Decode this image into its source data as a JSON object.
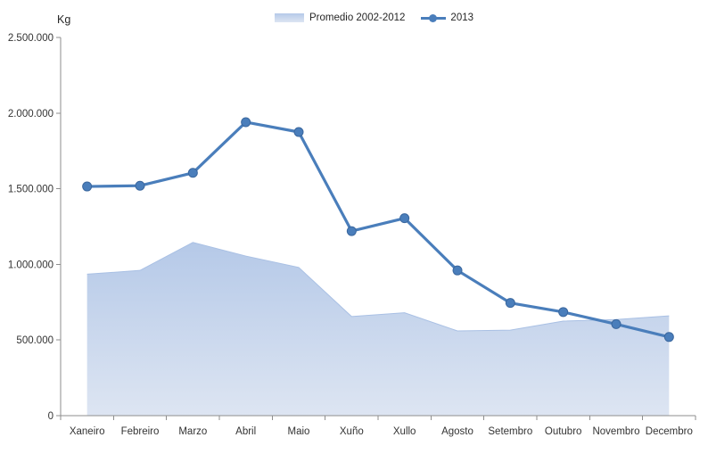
{
  "chart_data": {
    "type": "area+line",
    "title": "",
    "unit_label": "Kg",
    "categories": [
      "Xaneiro",
      "Febreiro",
      "Marzo",
      "Abril",
      "Maio",
      "Xuño",
      "Xullo",
      "Agosto",
      "Setembro",
      "Outubro",
      "Novembro",
      "Decembro"
    ],
    "series": [
      {
        "name": "Promedio 2002-2012",
        "type": "area",
        "values": [
          935000,
          960000,
          1145000,
          1055000,
          980000,
          655000,
          680000,
          560000,
          565000,
          625000,
          635000,
          660000
        ]
      },
      {
        "name": "2013",
        "type": "line",
        "values": [
          1515000,
          1520000,
          1605000,
          1940000,
          1875000,
          1220000,
          1305000,
          960000,
          745000,
          685000,
          605000,
          520000
        ]
      }
    ],
    "y_axis": {
      "min": 0,
      "max": 2500000,
      "step": 500000,
      "tick_labels": [
        "0",
        "500.000",
        "1.000.000",
        "1.500.000",
        "2.000.000",
        "2.500.000"
      ]
    },
    "x_axis": {
      "tick_marks": "between-categories"
    },
    "legend_position": "top",
    "grid": false
  },
  "colors": {
    "line": "#4a7ebb",
    "marker_stroke": "#3a679e",
    "area_top": "#b5c9e8",
    "area_bottom": "#dde5f2",
    "area_edge": "#a9c0e4",
    "axis": "#8e8e8e",
    "text": "#333333"
  }
}
